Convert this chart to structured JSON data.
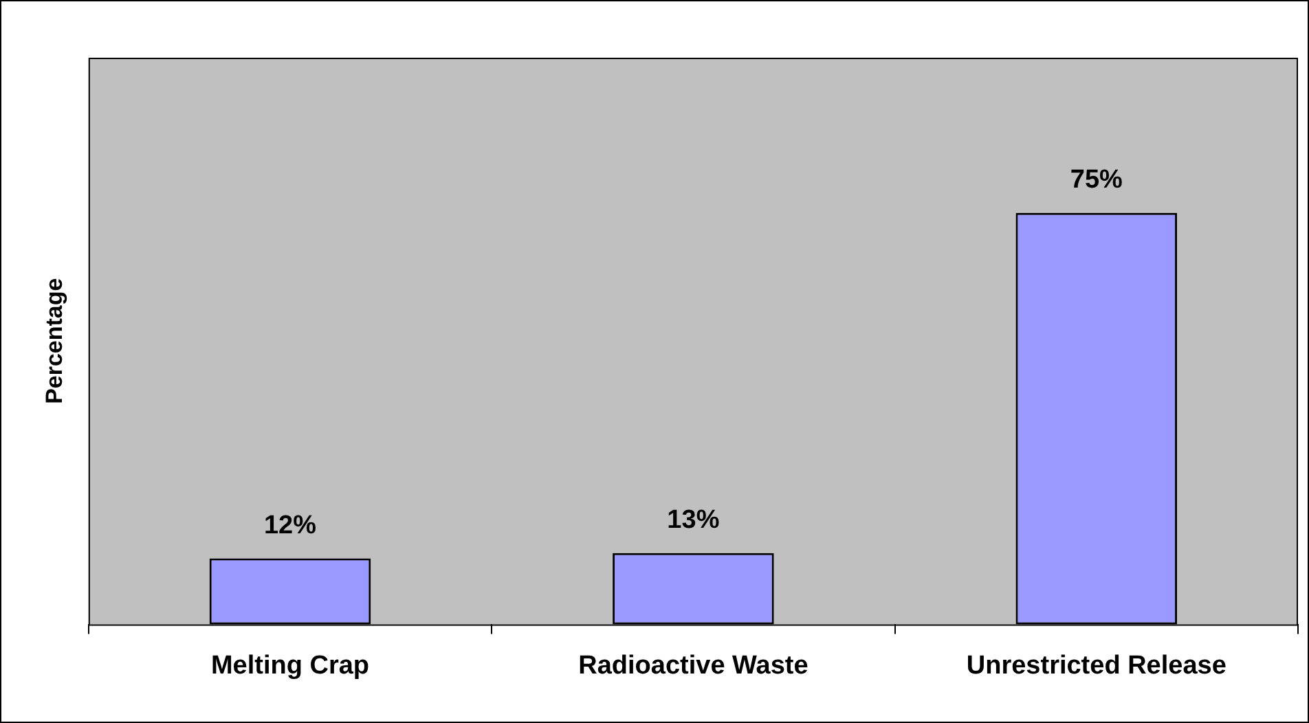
{
  "chart_data": {
    "type": "bar",
    "ylabel": "Percentage",
    "categories": [
      "Melting Crap",
      "Radioactive Waste",
      "Unrestricted Release"
    ],
    "values": [
      12,
      13,
      75
    ],
    "value_labels": [
      "12%",
      "13%",
      "75%"
    ],
    "color": "#9999ff",
    "grid": false,
    "legend": false,
    "tick_labels": "x"
  }
}
